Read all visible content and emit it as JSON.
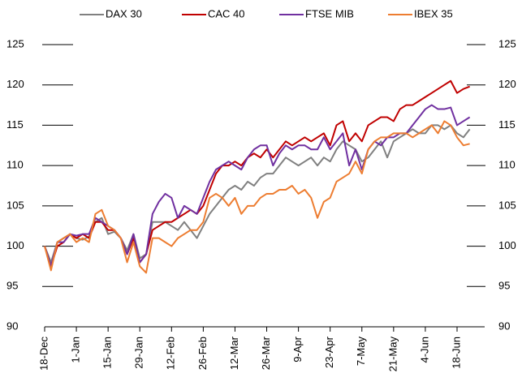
{
  "chart_data": {
    "type": "line",
    "categories": [
      "18-Dec",
      null,
      null,
      null,
      null,
      "1-Jan",
      null,
      null,
      null,
      null,
      "15-Jan",
      null,
      null,
      null,
      null,
      "29-Jan",
      null,
      null,
      null,
      null,
      "12-Feb",
      null,
      null,
      null,
      null,
      "26-Feb",
      null,
      null,
      null,
      null,
      "12-Mar",
      null,
      null,
      null,
      null,
      "26-Mar",
      null,
      null,
      null,
      null,
      "9-Apr",
      null,
      null,
      null,
      null,
      "23-Apr",
      null,
      null,
      null,
      null,
      "7-May",
      null,
      null,
      null,
      null,
      "21-May",
      null,
      null,
      null,
      null,
      "4-Jun",
      null,
      null,
      null,
      null,
      "18-Jun",
      null,
      null
    ],
    "series": [
      {
        "name": "DAX 30",
        "color": "#808080",
        "values": [
          100,
          98,
          100.5,
          101,
          101.5,
          101,
          100.8,
          101.2,
          103,
          103.5,
          101.5,
          101.8,
          101,
          99.5,
          101.5,
          98.5,
          99,
          103,
          103,
          103,
          102.5,
          102,
          103,
          102,
          101,
          102.5,
          104,
          105,
          106,
          107,
          107.5,
          107,
          108,
          107.5,
          108.5,
          109,
          109,
          110,
          111,
          110.5,
          110,
          110.5,
          111,
          110,
          111,
          110.5,
          112,
          113,
          112.5,
          112,
          110.5,
          111,
          112,
          113,
          111,
          113,
          113.5,
          114,
          114.5,
          114,
          114,
          115,
          115,
          114.5,
          115,
          114,
          113.5,
          114.5
        ]
      },
      {
        "name": "CAC 40",
        "color": "#c00000",
        "values": [
          100,
          97.5,
          100,
          100.5,
          101.5,
          101,
          101.5,
          101,
          103,
          103,
          102,
          102,
          101,
          99,
          101,
          98,
          99,
          102,
          102.5,
          103,
          103,
          103.5,
          104,
          104.5,
          104,
          105,
          107,
          109,
          110,
          110,
          110.5,
          110,
          111,
          111.5,
          111,
          112,
          111,
          112,
          113,
          112.5,
          113,
          113.5,
          113,
          113.5,
          114,
          112.5,
          115,
          115.5,
          113,
          114,
          113,
          115,
          115.5,
          116,
          116,
          115.5,
          117,
          117.5,
          117.5,
          118,
          118.5,
          119,
          119.5,
          120,
          120.5,
          119,
          119.5,
          119.8
        ]
      },
      {
        "name": "FTSE MIB",
        "color": "#7030a0",
        "values": [
          100,
          97.5,
          100.5,
          100.5,
          101.5,
          101.3,
          101.5,
          101.5,
          103.5,
          103,
          102.5,
          102,
          101,
          99,
          101.5,
          98,
          99,
          104,
          105.5,
          106.5,
          106,
          103.5,
          105,
          104.5,
          104,
          106,
          108,
          109.5,
          110,
          110.5,
          110,
          109.5,
          111,
          112,
          112.5,
          112.5,
          110,
          111.5,
          112.5,
          112,
          112.5,
          112.5,
          112,
          112,
          113.5,
          112,
          113,
          114,
          110,
          112,
          109.5,
          112,
          113,
          112.5,
          113.5,
          113.5,
          114,
          114,
          115,
          116,
          117,
          117.5,
          117,
          117,
          117.2,
          115,
          115.5,
          116
        ]
      },
      {
        "name": "IBEX 35",
        "color": "#ed7d31",
        "values": [
          100,
          97,
          100.5,
          101,
          101.5,
          100.5,
          101,
          100.5,
          104,
          104.5,
          102.5,
          102,
          101,
          98,
          100.5,
          97.5,
          96.7,
          101,
          101,
          100.5,
          100,
          101,
          101.5,
          102,
          102,
          103,
          106,
          106.5,
          106,
          105,
          106,
          104,
          105,
          105,
          106,
          106.5,
          106.5,
          107,
          107,
          107.5,
          106.5,
          107,
          106,
          103.5,
          105.5,
          106,
          108,
          108.5,
          109,
          110.5,
          109,
          112,
          113,
          113.5,
          113.5,
          114,
          114,
          114,
          113.5,
          114,
          114.5,
          115,
          114,
          115.5,
          115,
          113.5,
          112.5,
          112.7
        ]
      }
    ],
    "ylim": [
      90,
      125
    ],
    "yticks": [
      90,
      95,
      100,
      105,
      110,
      115,
      120,
      125
    ],
    "y2lim": [
      90,
      125
    ],
    "y2ticks": [
      90,
      95,
      100,
      105,
      110,
      115,
      120,
      125
    ],
    "legend": "top"
  }
}
